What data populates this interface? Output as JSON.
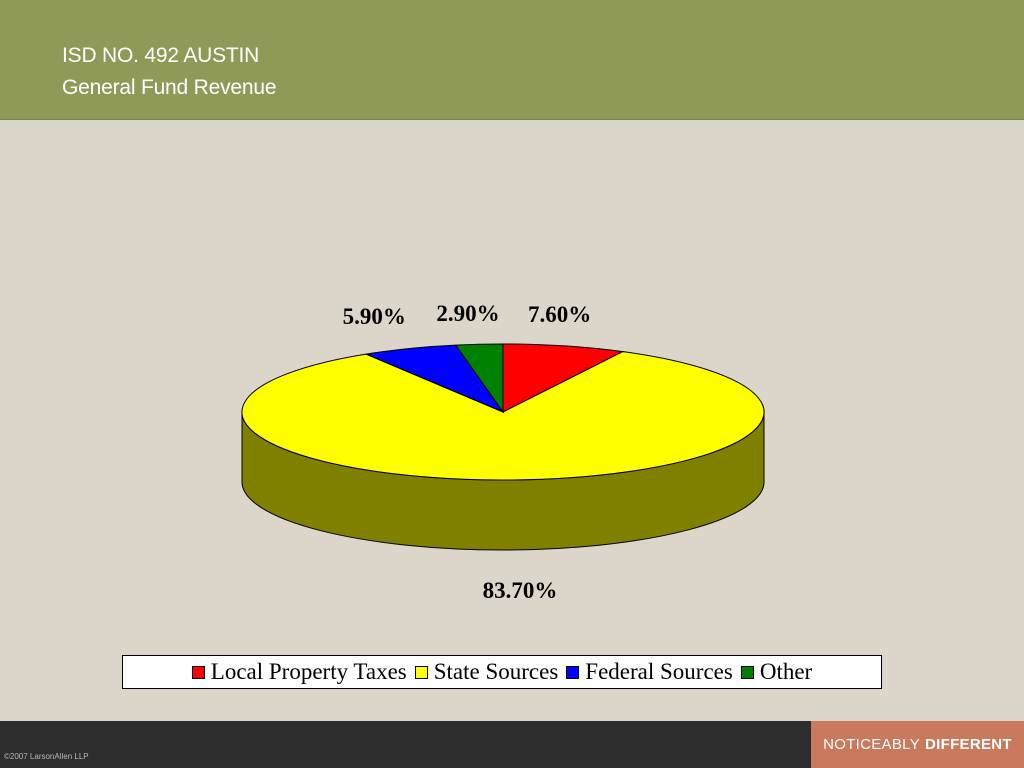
{
  "header": {
    "title_line1": "ISD NO. 492 AUSTIN",
    "title_line2": "General Fund Revenue"
  },
  "chart_data": {
    "type": "pie",
    "categories": [
      "Local Property Taxes",
      "State Sources",
      "Federal Sources",
      "Other"
    ],
    "values": [
      7.6,
      83.7,
      5.9,
      2.9
    ],
    "data_labels": [
      "7.60%",
      "83.70%",
      "5.90%",
      "2.90%"
    ],
    "colors": [
      "#ff0000",
      "#ffff00",
      "#0000ff",
      "#008000"
    ],
    "side_color": "#808000",
    "legend_placement": "bottom",
    "three_d": true
  },
  "footer": {
    "tag_light": "NOTICEABLY",
    "tag_bold": "DIFFERENT",
    "copyright": "©2007 LarsonAllen LLP"
  }
}
